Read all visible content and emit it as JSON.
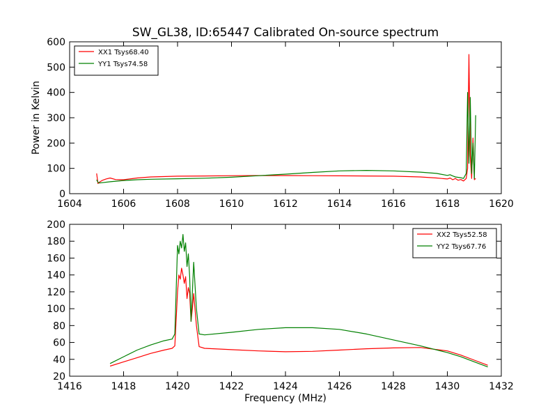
{
  "figure": {
    "title": "SW_GL38, ID:65447 Calibrated On-source spectrum",
    "ylabel_top": "Power in Kelvin",
    "xlabel_bottom": "Frequency (MHz)"
  },
  "chart_data": [
    {
      "type": "line",
      "title": "SW_GL38, ID:65447 Calibrated On-source spectrum",
      "xlabel": "",
      "ylabel": "Power in Kelvin",
      "xlim": [
        1604,
        1620
      ],
      "ylim": [
        0,
        600
      ],
      "xticks": [
        1604,
        1606,
        1608,
        1610,
        1612,
        1614,
        1616,
        1618,
        1620
      ],
      "yticks": [
        0,
        100,
        200,
        300,
        400,
        500,
        600
      ],
      "grid": false,
      "legend_position": "top-left",
      "series": [
        {
          "name": "XX1 Tsys68.40",
          "color": "#ff0000",
          "x": [
            1605.0,
            1605.05,
            1605.1,
            1605.2,
            1605.35,
            1605.5,
            1605.7,
            1606.0,
            1606.5,
            1607.0,
            1608.0,
            1609.0,
            1610.0,
            1611.0,
            1612.0,
            1613.0,
            1614.0,
            1615.0,
            1616.0,
            1617.0,
            1617.6,
            1618.0,
            1618.1,
            1618.2,
            1618.3,
            1618.4,
            1618.5,
            1618.6,
            1618.7,
            1618.75,
            1618.8,
            1618.85,
            1618.9,
            1618.95,
            1619.0,
            1619.05
          ],
          "y": [
            80,
            40,
            45,
            52,
            58,
            62,
            56,
            55,
            62,
            66,
            69,
            70,
            71,
            71.5,
            71.5,
            71,
            70.5,
            70,
            69,
            66,
            62,
            58,
            62,
            55,
            60,
            53,
            56,
            50,
            60,
            100,
            550,
            150,
            60,
            220,
            55,
            60
          ]
        },
        {
          "name": "YY1 Tsys74.58",
          "color": "#008000",
          "x": [
            1605.0,
            1605.05,
            1605.1,
            1605.5,
            1606.0,
            1606.5,
            1607.0,
            1608.0,
            1609.0,
            1610.0,
            1611.0,
            1612.0,
            1613.0,
            1614.0,
            1615.0,
            1616.0,
            1617.0,
            1617.6,
            1618.0,
            1618.1,
            1618.2,
            1618.3,
            1618.5,
            1618.6,
            1618.7,
            1618.75,
            1618.8,
            1618.85,
            1618.9,
            1618.95,
            1619.0,
            1619.05
          ],
          "y": [
            55,
            45,
            42,
            47,
            52,
            55,
            57,
            59,
            61,
            65,
            71,
            77,
            84,
            90,
            92,
            90,
            85,
            80,
            72,
            75,
            70,
            66,
            63,
            60,
            80,
            400,
            120,
            380,
            80,
            200,
            60,
            310
          ]
        }
      ]
    },
    {
      "type": "line",
      "title": "",
      "xlabel": "Frequency (MHz)",
      "ylabel": "",
      "xlim": [
        1416,
        1432
      ],
      "ylim": [
        20,
        200
      ],
      "xticks": [
        1416,
        1418,
        1420,
        1422,
        1424,
        1426,
        1428,
        1430,
        1432
      ],
      "yticks": [
        20,
        40,
        60,
        80,
        100,
        120,
        140,
        160,
        180,
        200
      ],
      "grid": false,
      "legend_position": "top-right",
      "series": [
        {
          "name": "XX2 Tsys52.58",
          "color": "#ff0000",
          "x": [
            1417.5,
            1418.0,
            1418.5,
            1419.0,
            1419.5,
            1419.8,
            1419.9,
            1420.0,
            1420.05,
            1420.1,
            1420.15,
            1420.2,
            1420.25,
            1420.3,
            1420.35,
            1420.4,
            1420.45,
            1420.5,
            1420.55,
            1420.6,
            1420.7,
            1420.8,
            1421.0,
            1422.0,
            1423.0,
            1424.0,
            1425.0,
            1426.0,
            1427.0,
            1428.0,
            1429.0,
            1430.0,
            1430.5,
            1431.0,
            1431.5
          ],
          "y": [
            32,
            37,
            42,
            47,
            51,
            53,
            56,
            120,
            140,
            135,
            148,
            140,
            130,
            138,
            112,
            125,
            118,
            85,
            100,
            118,
            80,
            55,
            53,
            51.5,
            50,
            49,
            49.5,
            51,
            52.5,
            53.5,
            54,
            50,
            45,
            39,
            33
          ]
        },
        {
          "name": "YY2 Tsys67.76",
          "color": "#008000",
          "x": [
            1417.5,
            1418.0,
            1418.5,
            1419.0,
            1419.5,
            1419.8,
            1419.9,
            1420.0,
            1420.05,
            1420.1,
            1420.15,
            1420.2,
            1420.25,
            1420.3,
            1420.35,
            1420.4,
            1420.45,
            1420.5,
            1420.55,
            1420.6,
            1420.7,
            1420.8,
            1421.0,
            1422.0,
            1423.0,
            1424.0,
            1425.0,
            1426.0,
            1427.0,
            1428.0,
            1429.0,
            1430.0,
            1430.5,
            1431.0,
            1431.5
          ],
          "y": [
            35,
            43,
            51,
            57,
            62,
            64,
            70,
            175,
            165,
            180,
            172,
            188,
            168,
            178,
            150,
            165,
            138,
            85,
            120,
            155,
            100,
            70,
            69,
            72,
            75.5,
            77.5,
            77.5,
            75.5,
            70,
            63,
            56,
            48,
            43,
            37,
            31
          ]
        }
      ]
    }
  ]
}
